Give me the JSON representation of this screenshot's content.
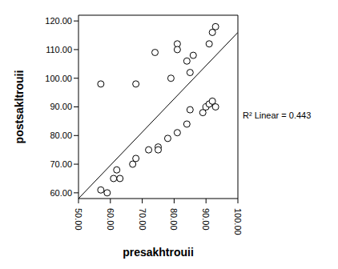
{
  "chart_data": {
    "type": "scatter",
    "x_label": "presakhtrouii",
    "y_label": "postsakltrouii",
    "annotation": "R² Linear = 0.443",
    "color": "#000000",
    "marker": "circle",
    "xlim": [
      50,
      100
    ],
    "ylim": [
      58,
      122
    ],
    "xticks": [
      {
        "value": 50,
        "label": "50.00"
      },
      {
        "value": 60,
        "label": "60.00"
      },
      {
        "value": 70,
        "label": "70.00"
      },
      {
        "value": 80,
        "label": "80.00"
      },
      {
        "value": 90,
        "label": "90.00"
      },
      {
        "value": 100,
        "label": "100.00"
      }
    ],
    "yticks": [
      {
        "value": 60,
        "label": "60.00"
      },
      {
        "value": 70,
        "label": "70.00"
      },
      {
        "value": 80,
        "label": "80.00"
      },
      {
        "value": 90,
        "label": "90.00"
      },
      {
        "value": 100,
        "label": "100.00"
      },
      {
        "value": 110,
        "label": "110.00"
      },
      {
        "value": 120,
        "label": "120.00"
      }
    ],
    "x": [
      57,
      68,
      74,
      79,
      81,
      81,
      84,
      86,
      85,
      91,
      92,
      93,
      57,
      59,
      61,
      62,
      63,
      67,
      68,
      72,
      75,
      75,
      78,
      81,
      84,
      85,
      89,
      90,
      91,
      92,
      93
    ],
    "values": [
      98,
      98,
      109,
      100,
      112,
      110,
      106,
      108,
      102,
      112,
      116,
      118,
      61,
      60,
      65,
      68,
      65,
      70,
      72,
      75,
      76,
      75,
      79,
      81,
      84,
      89,
      88,
      90,
      91,
      92,
      90
    ],
    "fit_line": {
      "x": [
        50,
        100
      ],
      "y": [
        58,
        116
      ]
    }
  }
}
